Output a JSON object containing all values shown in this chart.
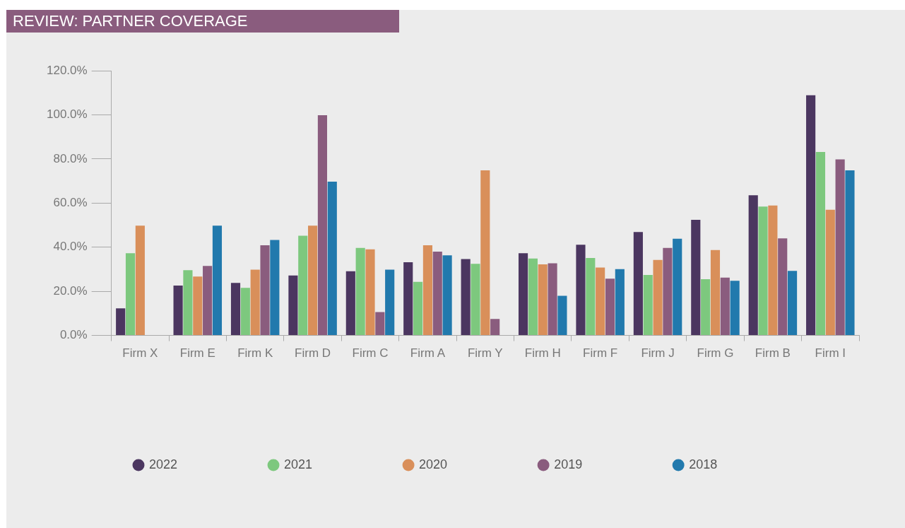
{
  "chart_data": {
    "type": "bar",
    "title": "REVIEW: PARTNER COVERAGE",
    "categories": [
      "Firm X",
      "Firm E",
      "Firm K",
      "Firm D",
      "Firm C",
      "Firm A",
      "Firm Y",
      "Firm H",
      "Firm F",
      "Firm J",
      "Firm G",
      "Firm B",
      "Firm I"
    ],
    "series": [
      {
        "name": "2022",
        "color": "#4b3660",
        "values": [
          12.3,
          22.6,
          23.8,
          27.2,
          29.1,
          33.2,
          34.6,
          37.3,
          41.1,
          46.9,
          52.4,
          63.5,
          108.9
        ]
      },
      {
        "name": "2021",
        "color": "#7dc87e",
        "values": [
          37.3,
          29.6,
          21.6,
          45.2,
          39.7,
          24.3,
          32.5,
          34.9,
          35.1,
          27.4,
          25.5,
          58.4,
          83.2
        ]
      },
      {
        "name": "2020",
        "color": "#d98f5a",
        "values": [
          49.8,
          26.7,
          29.8,
          49.8,
          39.0,
          40.9,
          74.8,
          32.2,
          30.8,
          34.2,
          38.7,
          58.9,
          57.0
        ]
      },
      {
        "name": "2019",
        "color": "#8a5c7e",
        "values": [
          null,
          31.5,
          40.9,
          99.8,
          10.6,
          38.0,
          7.5,
          32.7,
          25.7,
          39.7,
          26.2,
          44.0,
          79.8
        ]
      },
      {
        "name": "2018",
        "color": "#2179ad",
        "values": [
          null,
          49.8,
          43.3,
          69.7,
          29.8,
          36.3,
          null,
          18.0,
          30.1,
          43.8,
          24.8,
          29.3,
          74.8
        ]
      }
    ],
    "ylim": [
      0,
      120
    ],
    "yticks": [
      {
        "value": 0,
        "label": "0.0%"
      },
      {
        "value": 20,
        "label": "20.0%"
      },
      {
        "value": 40,
        "label": "40.0%"
      },
      {
        "value": 60,
        "label": "60.0%"
      },
      {
        "value": 80,
        "label": "80.0%"
      },
      {
        "value": 100,
        "label": "100.0%"
      },
      {
        "value": 120,
        "label": "120.0%"
      }
    ],
    "grid": false,
    "legend": "bottom"
  }
}
